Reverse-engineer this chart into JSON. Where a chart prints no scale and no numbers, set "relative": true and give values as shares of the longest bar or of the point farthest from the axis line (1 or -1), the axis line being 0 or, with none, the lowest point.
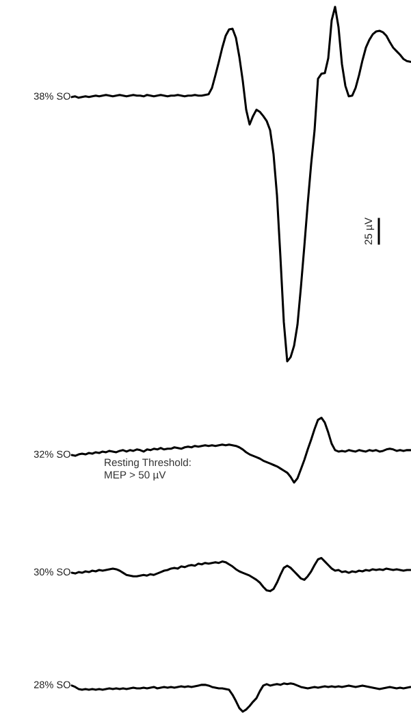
{
  "chart_data": {
    "type": "line",
    "relative": true,
    "categories": [
      null,
      null,
      null,
      null,
      null,
      null,
      null,
      null,
      null,
      null,
      null,
      null,
      null,
      null,
      null,
      null,
      null,
      null,
      null,
      null,
      null,
      null,
      null,
      null,
      null,
      null,
      null,
      null,
      null,
      null,
      null,
      null,
      null,
      null,
      null,
      null,
      null,
      null,
      null,
      null,
      null,
      null,
      null,
      null,
      null,
      null,
      null,
      null,
      null,
      null,
      null,
      null,
      null,
      null,
      null,
      null,
      null,
      null,
      null,
      null,
      null,
      null,
      null,
      null,
      null,
      null,
      null,
      null,
      null,
      null,
      null,
      null,
      null,
      null,
      null,
      null,
      null,
      null,
      null,
      null,
      null,
      null,
      null,
      null,
      null,
      null,
      null,
      null,
      null,
      null,
      null,
      null,
      null,
      null,
      null,
      null,
      null,
      null,
      null,
      null,
      null
    ],
    "series": [
      {
        "name": "38% SO",
        "color": "#000000",
        "values": [
          null,
          0.872,
          0.873,
          0.871,
          0.872,
          0.873,
          0.872,
          0.873,
          0.874,
          0.873,
          0.874,
          0.875,
          0.874,
          0.873,
          0.874,
          0.875,
          0.874,
          0.873,
          0.874,
          0.875,
          0.874,
          0.874,
          0.873,
          0.875,
          0.874,
          0.873,
          0.874,
          0.875,
          0.874,
          0.873,
          0.874,
          0.874,
          0.875,
          0.874,
          0.873,
          0.874,
          0.874,
          0.875,
          0.874,
          0.874,
          0.875,
          0.876,
          0.885,
          0.903,
          0.922,
          0.942,
          0.959,
          0.968,
          0.969,
          0.956,
          0.929,
          0.895,
          0.854,
          0.833,
          0.845,
          0.854,
          0.851,
          0.845,
          0.838,
          0.825,
          0.791,
          0.733,
          0.646,
          0.553,
          0.497,
          0.503,
          0.519,
          0.549,
          0.602,
          0.66,
          0.721,
          0.777,
          0.825,
          0.898,
          0.905,
          0.906,
          0.927,
          0.981,
          1.0,
          0.971,
          0.919,
          0.888,
          0.873,
          0.874,
          0.885,
          0.903,
          0.924,
          0.942,
          0.953,
          0.961,
          0.965,
          0.966,
          0.964,
          0.959,
          0.95,
          0.942,
          0.937,
          0.932,
          0.926,
          0.923,
          0.922
        ]
      },
      {
        "name": "32% SO",
        "color": "#000000",
        "values": [
          null,
          0.364,
          0.363,
          0.365,
          0.366,
          0.365,
          0.367,
          0.366,
          0.368,
          0.367,
          0.369,
          0.368,
          0.37,
          0.369,
          0.368,
          0.37,
          0.371,
          0.369,
          0.371,
          0.37,
          0.372,
          0.371,
          0.369,
          0.372,
          0.371,
          0.373,
          0.372,
          0.374,
          0.372,
          0.373,
          0.373,
          0.375,
          0.374,
          0.373,
          0.375,
          0.376,
          0.375,
          0.377,
          0.376,
          0.377,
          0.378,
          0.377,
          0.378,
          0.377,
          0.378,
          0.379,
          0.378,
          0.379,
          0.378,
          0.377,
          0.375,
          0.372,
          0.368,
          0.365,
          0.363,
          0.361,
          0.359,
          0.356,
          0.354,
          0.352,
          0.35,
          0.348,
          0.345,
          0.342,
          0.339,
          0.333,
          0.325,
          0.331,
          0.344,
          0.357,
          0.372,
          0.386,
          0.401,
          0.414,
          0.417,
          0.41,
          0.396,
          0.38,
          0.371,
          0.369,
          0.37,
          0.369,
          0.371,
          0.37,
          0.369,
          0.371,
          0.37,
          0.369,
          0.371,
          0.37,
          0.371,
          0.369,
          0.37,
          0.372,
          0.373,
          0.372,
          0.37,
          0.371,
          0.37,
          0.371,
          0.371
        ]
      },
      {
        "name": "30% SO",
        "color": "#000000",
        "values": [
          null,
          0.197,
          0.196,
          0.198,
          0.197,
          0.199,
          0.198,
          0.2,
          0.199,
          0.201,
          0.2,
          0.201,
          0.202,
          0.203,
          0.202,
          0.2,
          0.197,
          0.194,
          0.193,
          0.192,
          0.192,
          0.193,
          0.194,
          0.193,
          0.195,
          0.194,
          0.196,
          0.198,
          0.2,
          0.201,
          0.203,
          0.204,
          0.203,
          0.206,
          0.205,
          0.207,
          0.208,
          0.207,
          0.21,
          0.209,
          0.211,
          0.21,
          0.211,
          0.212,
          0.211,
          0.213,
          0.212,
          0.209,
          0.206,
          0.202,
          0.199,
          0.197,
          0.195,
          0.193,
          0.19,
          0.187,
          0.183,
          0.177,
          0.172,
          0.171,
          0.174,
          0.183,
          0.194,
          0.204,
          0.207,
          0.204,
          0.199,
          0.194,
          0.189,
          0.187,
          0.192,
          0.199,
          0.208,
          0.216,
          0.218,
          0.213,
          0.208,
          0.203,
          0.2,
          0.201,
          0.198,
          0.199,
          0.197,
          0.199,
          0.198,
          0.2,
          0.199,
          0.201,
          0.2,
          0.202,
          0.201,
          0.202,
          0.201,
          0.203,
          0.202,
          0.201,
          0.202,
          0.201,
          0.2,
          0.201,
          0.201
        ]
      },
      {
        "name": "28% SO",
        "color": "#000000",
        "values": [
          null,
          0.037,
          0.035,
          0.032,
          0.031,
          0.032,
          0.031,
          0.032,
          0.031,
          0.032,
          0.031,
          0.032,
          0.033,
          0.032,
          0.033,
          0.032,
          0.033,
          0.032,
          0.033,
          0.034,
          0.033,
          0.033,
          0.034,
          0.033,
          0.034,
          0.035,
          0.033,
          0.034,
          0.035,
          0.034,
          0.035,
          0.034,
          0.035,
          0.036,
          0.035,
          0.036,
          0.035,
          0.036,
          0.037,
          0.038,
          0.038,
          0.037,
          0.035,
          0.034,
          0.033,
          0.033,
          0.032,
          0.031,
          0.024,
          0.015,
          0.005,
          0.0,
          0.003,
          0.008,
          0.014,
          0.019,
          0.029,
          0.037,
          0.039,
          0.037,
          0.038,
          0.039,
          0.038,
          0.04,
          0.039,
          0.04,
          0.039,
          0.037,
          0.035,
          0.034,
          0.033,
          0.034,
          0.035,
          0.034,
          0.035,
          0.036,
          0.035,
          0.036,
          0.035,
          0.036,
          0.035,
          0.036,
          0.037,
          0.036,
          0.035,
          0.036,
          0.037,
          0.036,
          0.035,
          0.034,
          0.033,
          0.032,
          0.033,
          0.034,
          0.035,
          0.034,
          0.033,
          0.034,
          0.033,
          0.034,
          0.035
        ]
      }
    ],
    "annotations": [
      "Resting Threshold:\nMEP > 50 µV",
      "25 µV"
    ]
  }
}
